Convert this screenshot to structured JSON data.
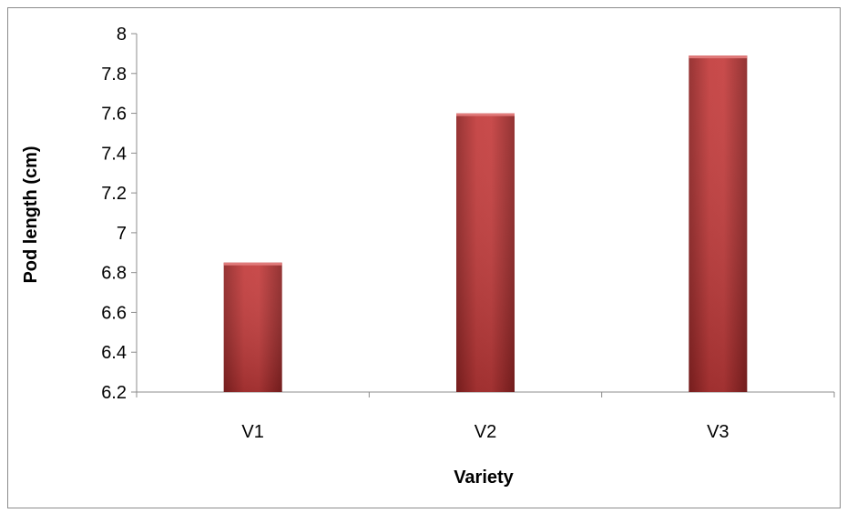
{
  "chart_data": {
    "type": "bar",
    "title": "",
    "xlabel": "Variety",
    "ylabel": "Pod length (cm)",
    "categories": [
      "V1",
      "V2",
      "V3"
    ],
    "values": [
      6.85,
      7.6,
      7.89
    ],
    "ylim": [
      6.2,
      8
    ],
    "yticks": [
      "6.2",
      "6.4",
      "6.6",
      "6.8",
      "7",
      "7.2",
      "7.4",
      "7.6",
      "7.8",
      "8"
    ],
    "grid": false,
    "legend": "none",
    "bar_color": "#b83232"
  }
}
